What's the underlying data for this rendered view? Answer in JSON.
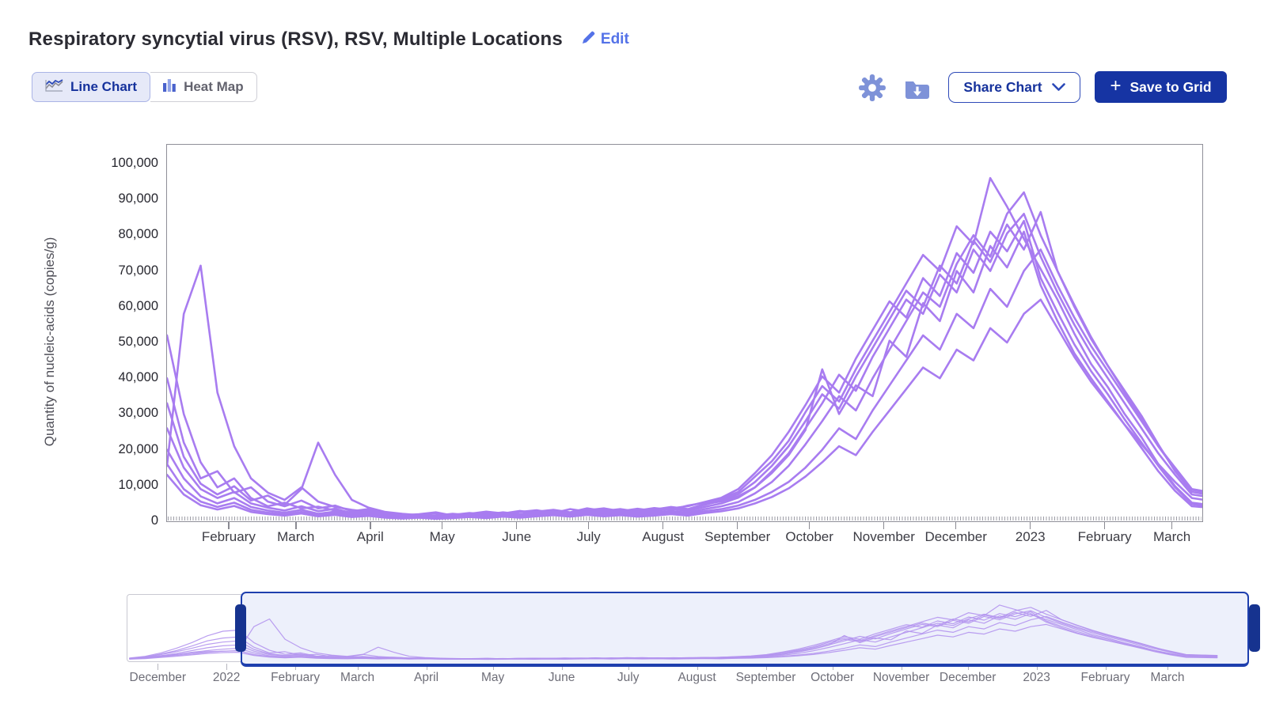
{
  "header": {
    "title": "Respiratory syncytial virus (RSV), RSV, Multiple Locations",
    "edit_label": "Edit"
  },
  "toolbar": {
    "line_chart_label": "Line Chart",
    "heat_map_label": "Heat Map",
    "share_chart_label": "Share Chart",
    "save_to_grid_label": "Save to Grid",
    "plus_glyph": "+"
  },
  "colors": {
    "accent_navy": "#1634a3",
    "link_blue": "#5472e8",
    "icon_periwinkle": "#7e92d8",
    "active_toggle_bg": "#e6e9f8",
    "active_toggle_text": "#16329c",
    "line_purple": "#a87cf0",
    "overview_line_purple": "#b394ee",
    "selection_border": "#1e3fae",
    "selection_handle": "#16338f"
  },
  "chart_data": {
    "type": "line",
    "title": "Respiratory syncytial virus (RSV), RSV, Multiple Locations",
    "xlabel": "",
    "ylabel": "Quantity of nucleic-acids (copies/g)",
    "ylim": [
      0,
      100000
    ],
    "grid": false,
    "legend": "none",
    "x_unit": "day offset from 2022-01-01, weekly samples",
    "y_ticks": [
      100000,
      90000,
      80000,
      70000,
      60000,
      50000,
      40000,
      30000,
      20000,
      10000,
      0
    ],
    "x_ticks_main": [
      {
        "label": "February",
        "day": 31
      },
      {
        "label": "March",
        "day": 59
      },
      {
        "label": "April",
        "day": 90
      },
      {
        "label": "May",
        "day": 120
      },
      {
        "label": "June",
        "day": 151
      },
      {
        "label": "July",
        "day": 181
      },
      {
        "label": "August",
        "day": 212
      },
      {
        "label": "September",
        "day": 243
      },
      {
        "label": "October",
        "day": 273
      },
      {
        "label": "November",
        "day": 304
      },
      {
        "label": "December",
        "day": 334
      },
      {
        "label": "2023",
        "day": 365
      },
      {
        "label": "February",
        "day": 396
      },
      {
        "label": "March",
        "day": 424
      }
    ],
    "x_ticks_overview": [
      {
        "label": "December",
        "day": -31
      },
      {
        "label": "2022",
        "day": 0
      },
      {
        "label": "February",
        "day": 31
      },
      {
        "label": "March",
        "day": 59
      },
      {
        "label": "April",
        "day": 90
      },
      {
        "label": "May",
        "day": 120
      },
      {
        "label": "June",
        "day": 151
      },
      {
        "label": "July",
        "day": 181
      },
      {
        "label": "August",
        "day": 212
      },
      {
        "label": "September",
        "day": 243
      },
      {
        "label": "October",
        "day": 273
      },
      {
        "label": "November",
        "day": 304
      },
      {
        "label": "December",
        "day": 334
      },
      {
        "label": "2023",
        "day": 365
      },
      {
        "label": "February",
        "day": 396
      },
      {
        "label": "March",
        "day": 424
      }
    ],
    "days": [
      -44,
      -37,
      -30,
      -23,
      -16,
      -9,
      -2,
      5,
      12,
      19,
      26,
      33,
      40,
      47,
      54,
      61,
      68,
      75,
      82,
      89,
      96,
      103,
      110,
      117,
      124,
      131,
      138,
      145,
      152,
      159,
      166,
      173,
      180,
      187,
      194,
      201,
      208,
      215,
      222,
      229,
      236,
      243,
      250,
      257,
      264,
      271,
      278,
      285,
      292,
      299,
      306,
      313,
      320,
      327,
      334,
      341,
      348,
      355,
      362,
      369,
      376,
      383,
      390,
      397,
      404,
      411,
      418,
      425,
      432,
      439,
      446
    ],
    "series": [
      {
        "id": "location-1",
        "values": [
          3000,
          6000,
          12000,
          20000,
          30000,
          42000,
          50000,
          52000,
          30000,
          16500,
          9500,
          12000,
          6500,
          4200,
          5200,
          3600,
          4100,
          3000,
          2400,
          2000,
          1600,
          1900,
          1300,
          1600,
          2100,
          1700,
          2400,
          2000,
          2600,
          3100,
          2300,
          3400,
          2700,
          3100,
          2500,
          3000,
          3700,
          3200,
          4400,
          5200,
          6300,
          8200,
          12500,
          16800,
          22500,
          30500,
          37800,
          33500,
          42500,
          50500,
          58500,
          66500,
          74500,
          70000,
          82500,
          77500,
          96000,
          88000,
          79000,
          70500,
          62000,
          52500,
          44000,
          37500,
          30000,
          23500,
          16000,
          9800,
          5200,
          4600,
          4100
        ]
      },
      {
        "id": "location-2",
        "values": [
          2000,
          4000,
          7000,
          9000,
          12000,
          14000,
          15000,
          15500,
          58000,
          71500,
          36000,
          21000,
          12000,
          8000,
          6000,
          9500,
          5500,
          4000,
          3200,
          2600,
          2000,
          1600,
          1900,
          1400,
          1800,
          2300,
          1900,
          2500,
          2000,
          2700,
          3200,
          2500,
          3600,
          2900,
          3400,
          2700,
          3300,
          4000,
          3400,
          4800,
          5600,
          7000,
          9500,
          14000,
          19000,
          26000,
          33000,
          41000,
          36500,
          46000,
          54000,
          62000,
          58000,
          69000,
          64000,
          76000,
          70000,
          80500,
          86000,
          74000,
          64000,
          55000,
          47000,
          40000,
          33000,
          26000,
          19000,
          13000,
          7500,
          6800,
          6000
        ]
      },
      {
        "id": "location-3",
        "values": [
          2500,
          5000,
          10000,
          16000,
          24000,
          33000,
          38000,
          40000,
          22000,
          12000,
          14000,
          8000,
          9500,
          5500,
          4200,
          5800,
          3600,
          4400,
          2800,
          3400,
          2200,
          1700,
          2000,
          2500,
          1600,
          2100,
          2700,
          2200,
          2900,
          2300,
          3000,
          2400,
          3100,
          3600,
          2800,
          3500,
          2900,
          3600,
          4200,
          5400,
          6600,
          9000,
          13500,
          18500,
          25000,
          32500,
          40500,
          36000,
          45500,
          53500,
          61500,
          57000,
          68000,
          63000,
          75000,
          69500,
          81000,
          75500,
          84000,
          68000,
          58500,
          49500,
          42000,
          35500,
          28500,
          22000,
          15500,
          9500,
          4800,
          4200,
          3800
        ]
      },
      {
        "id": "location-4",
        "values": [
          2000,
          4500,
          9000,
          14000,
          20000,
          27000,
          31000,
          33000,
          18000,
          10500,
          7500,
          9800,
          5800,
          7200,
          4600,
          9000,
          22000,
          13000,
          6000,
          3800,
          2600,
          2100,
          1700,
          2200,
          1500,
          2000,
          2600,
          2100,
          2800,
          2200,
          2900,
          2300,
          3000,
          2400,
          3100,
          2500,
          3200,
          3900,
          3300,
          4600,
          5800,
          7600,
          11000,
          15500,
          21000,
          28000,
          35500,
          31500,
          40500,
          48500,
          56500,
          64500,
          60000,
          71500,
          66500,
          78500,
          72500,
          83000,
          76000,
          86500,
          70000,
          60500,
          51500,
          43500,
          36500,
          29500,
          21500,
          14000,
          8200,
          7400,
          6600
        ]
      },
      {
        "id": "location-5",
        "values": [
          1500,
          3000,
          6000,
          9000,
          13000,
          16000,
          18500,
          20000,
          12000,
          7000,
          5000,
          6500,
          4000,
          3000,
          2400,
          3200,
          2100,
          2700,
          1800,
          2300,
          1500,
          1200,
          1500,
          1100,
          1400,
          1800,
          1400,
          1900,
          1500,
          2000,
          2400,
          1800,
          2600,
          2000,
          2500,
          1900,
          2400,
          2900,
          2400,
          3400,
          4200,
          5400,
          7800,
          11000,
          15500,
          21500,
          28000,
          35000,
          31000,
          40000,
          48000,
          56000,
          64000,
          60000,
          72000,
          80000,
          74000,
          86000,
          92000,
          80000,
          70000,
          60000,
          51000,
          43500,
          36000,
          28500,
          21000,
          14500,
          8800,
          7900,
          7100
        ]
      },
      {
        "id": "location-6",
        "values": [
          1200,
          2500,
          5000,
          7500,
          10000,
          13000,
          15000,
          16000,
          9000,
          5500,
          4000,
          5200,
          3200,
          2400,
          1900,
          2600,
          1700,
          2200,
          1400,
          1800,
          1200,
          900,
          1200,
          800,
          1100,
          1500,
          1100,
          1600,
          1200,
          1700,
          2100,
          1500,
          2200,
          1700,
          2100,
          1600,
          2000,
          2500,
          2000,
          2800,
          3400,
          4400,
          6000,
          8200,
          11000,
          15000,
          20000,
          26000,
          23000,
          31000,
          38000,
          45000,
          52000,
          48000,
          58000,
          54000,
          65000,
          60000,
          70000,
          76000,
          66000,
          57000,
          49000,
          42000,
          35000,
          28000,
          21000,
          15000,
          9000,
          8200,
          7500
        ]
      },
      {
        "id": "location-7",
        "values": [
          1800,
          3500,
          7000,
          11000,
          16000,
          21000,
          24500,
          26000,
          15000,
          9000,
          6500,
          8200,
          5000,
          3800,
          3000,
          4200,
          2800,
          3500,
          2300,
          2900,
          1900,
          1500,
          1800,
          1300,
          1700,
          2200,
          1700,
          2300,
          1800,
          2400,
          2900,
          2200,
          3100,
          2400,
          3000,
          2300,
          2900,
          3500,
          2900,
          4000,
          5000,
          6600,
          9500,
          13500,
          18500,
          25500,
          42500,
          30000,
          38000,
          35000,
          50500,
          46000,
          61000,
          56000,
          70000,
          64000,
          77000,
          71000,
          81000,
          66000,
          56000,
          47000,
          40000,
          33500,
          27000,
          20500,
          14000,
          8500,
          4200,
          3800,
          3400
        ]
      },
      {
        "id": "location-8",
        "values": [
          1000,
          2000,
          4000,
          6000,
          8500,
          11000,
          12500,
          13000,
          7500,
          4500,
          3300,
          4300,
          2600,
          2000,
          1600,
          2200,
          1400,
          1800,
          1200,
          1500,
          1000,
          800,
          1000,
          700,
          900,
          1200,
          900,
          1300,
          1000,
          1400,
          1700,
          1300,
          1800,
          1400,
          1700,
          1300,
          1600,
          2000,
          1600,
          2300,
          2800,
          3600,
          5000,
          6800,
          9200,
          12500,
          16500,
          21000,
          18500,
          25000,
          31000,
          37000,
          43000,
          40000,
          48000,
          45000,
          54000,
          50000,
          58000,
          62000,
          54000,
          46000,
          39000,
          33000,
          27000,
          21500,
          16000,
          11000,
          6500,
          5800,
          5200
        ]
      }
    ]
  }
}
